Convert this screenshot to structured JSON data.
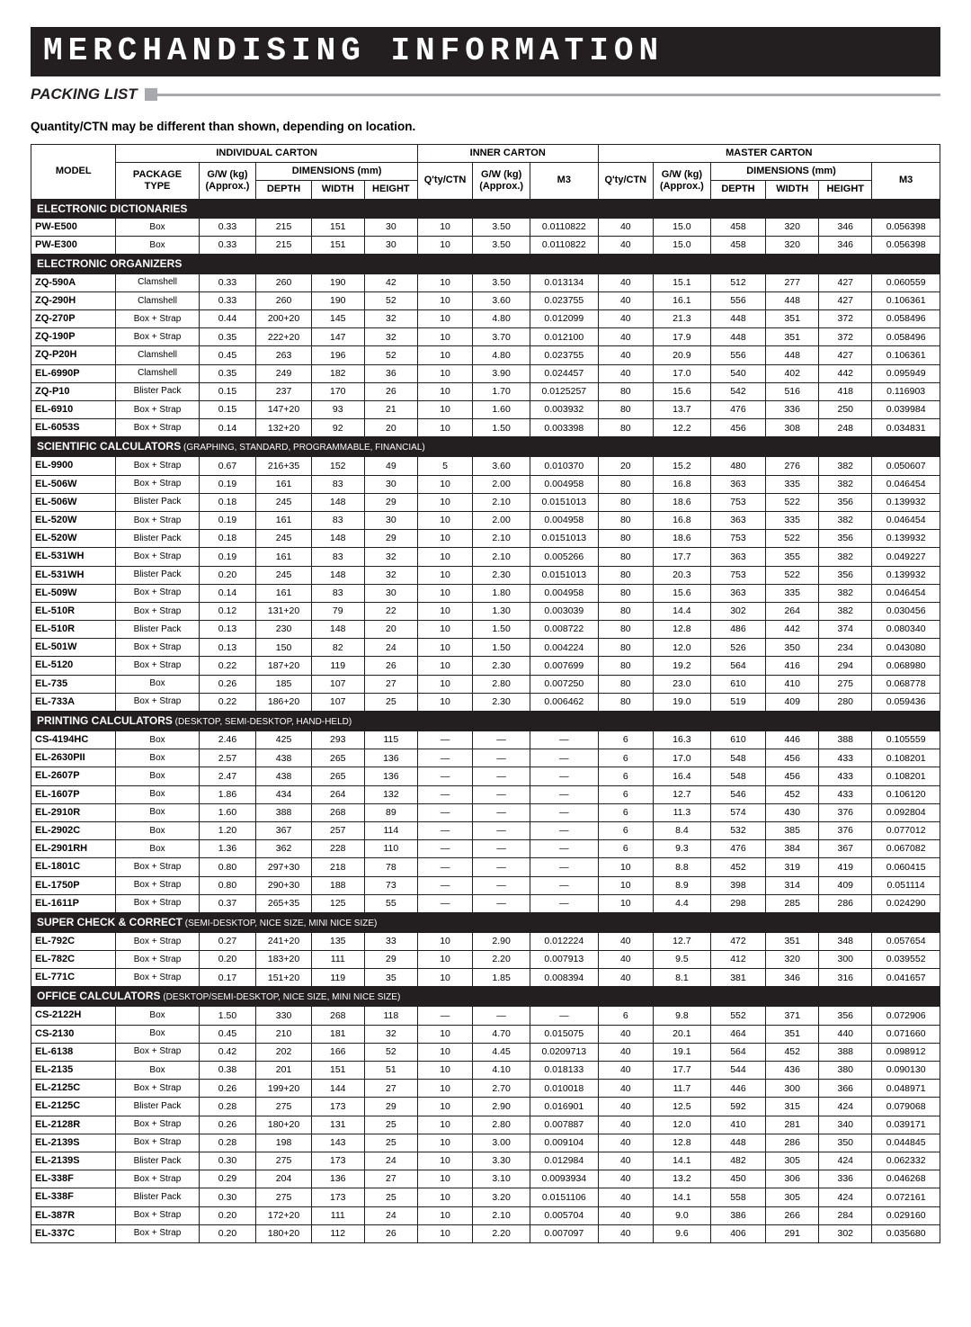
{
  "page": {
    "title": "MERCHANDISING INFORMATION",
    "subtitle": "PACKING LIST",
    "note": "Quantity/CTN may be different than shown, depending on location."
  },
  "headers": {
    "model": "MODEL",
    "individual": "INDIVIDUAL CARTON",
    "inner": "INNER CARTON",
    "master": "MASTER CARTON",
    "package_type_l1": "PACKAGE",
    "package_type_l2": "TYPE",
    "gw_l1": "G/W (kg)",
    "gw_l2": "(Approx.)",
    "dimensions": "DIMENSIONS (mm)",
    "depth": "DEPTH",
    "width": "WIDTH",
    "height": "HEIGHT",
    "qty": "Q'ty/CTN",
    "m3": "M3"
  },
  "sections": [
    {
      "title": "ELECTRONIC DICTIONARIES",
      "sub": "",
      "rows": [
        [
          "PW-E500",
          "Box",
          "0.33",
          "215",
          "151",
          "30",
          "10",
          "3.50",
          "0.0110822",
          "40",
          "15.0",
          "458",
          "320",
          "346",
          "0.056398"
        ],
        [
          "PW-E300",
          "Box",
          "0.33",
          "215",
          "151",
          "30",
          "10",
          "3.50",
          "0.0110822",
          "40",
          "15.0",
          "458",
          "320",
          "346",
          "0.056398"
        ]
      ]
    },
    {
      "title": "ELECTRONIC ORGANIZERS",
      "sub": "",
      "rows": [
        [
          "ZQ-590A",
          "Clamshell",
          "0.33",
          "260",
          "190",
          "42",
          "10",
          "3.50",
          "0.013134",
          "40",
          "15.1",
          "512",
          "277",
          "427",
          "0.060559"
        ],
        [
          "ZQ-290H",
          "Clamshell",
          "0.33",
          "260",
          "190",
          "52",
          "10",
          "3.60",
          "0.023755",
          "40",
          "16.1",
          "556",
          "448",
          "427",
          "0.106361"
        ],
        [
          "ZQ-270P",
          "Box + Strap",
          "0.44",
          "200+20",
          "145",
          "32",
          "10",
          "4.80",
          "0.012099",
          "40",
          "21.3",
          "448",
          "351",
          "372",
          "0.058496"
        ],
        [
          "ZQ-190P",
          "Box + Strap",
          "0.35",
          "222+20",
          "147",
          "32",
          "10",
          "3.70",
          "0.012100",
          "40",
          "17.9",
          "448",
          "351",
          "372",
          "0.058496"
        ],
        [
          "ZQ-P20H",
          "Clamshell",
          "0.45",
          "263",
          "196",
          "52",
          "10",
          "4.80",
          "0.023755",
          "40",
          "20.9",
          "556",
          "448",
          "427",
          "0.106361"
        ],
        [
          "EL-6990P",
          "Clamshell",
          "0.35",
          "249",
          "182",
          "36",
          "10",
          "3.90",
          "0.024457",
          "40",
          "17.0",
          "540",
          "402",
          "442",
          "0.095949"
        ],
        [
          "ZQ-P10",
          "Blister Pack",
          "0.15",
          "237",
          "170",
          "26",
          "10",
          "1.70",
          "0.0125257",
          "80",
          "15.6",
          "542",
          "516",
          "418",
          "0.116903"
        ],
        [
          "EL-6910",
          "Box + Strap",
          "0.15",
          "147+20",
          "93",
          "21",
          "10",
          "1.60",
          "0.003932",
          "80",
          "13.7",
          "476",
          "336",
          "250",
          "0.039984"
        ],
        [
          "EL-6053S",
          "Box + Strap",
          "0.14",
          "132+20",
          "92",
          "20",
          "10",
          "1.50",
          "0.003398",
          "80",
          "12.2",
          "456",
          "308",
          "248",
          "0.034831"
        ]
      ]
    },
    {
      "title": "SCIENTIFIC CALCULATORS",
      "sub": " (GRAPHING, STANDARD, PROGRAMMABLE, FINANCIAL)",
      "rows": [
        [
          "EL-9900",
          "Box + Strap",
          "0.67",
          "216+35",
          "152",
          "49",
          "5",
          "3.60",
          "0.010370",
          "20",
          "15.2",
          "480",
          "276",
          "382",
          "0.050607"
        ],
        [
          "EL-506W",
          "Box + Strap",
          "0.19",
          "161",
          "83",
          "30",
          "10",
          "2.00",
          "0.004958",
          "80",
          "16.8",
          "363",
          "335",
          "382",
          "0.046454"
        ],
        [
          "EL-506W",
          "Blister Pack",
          "0.18",
          "245",
          "148",
          "29",
          "10",
          "2.10",
          "0.0151013",
          "80",
          "18.6",
          "753",
          "522",
          "356",
          "0.139932"
        ],
        [
          "EL-520W",
          "Box + Strap",
          "0.19",
          "161",
          "83",
          "30",
          "10",
          "2.00",
          "0.004958",
          "80",
          "16.8",
          "363",
          "335",
          "382",
          "0.046454"
        ],
        [
          "EL-520W",
          "Blister Pack",
          "0.18",
          "245",
          "148",
          "29",
          "10",
          "2.10",
          "0.0151013",
          "80",
          "18.6",
          "753",
          "522",
          "356",
          "0.139932"
        ],
        [
          "EL-531WH",
          "Box + Strap",
          "0.19",
          "161",
          "83",
          "32",
          "10",
          "2.10",
          "0.005266",
          "80",
          "17.7",
          "363",
          "355",
          "382",
          "0.049227"
        ],
        [
          "EL-531WH",
          "Blister Pack",
          "0.20",
          "245",
          "148",
          "32",
          "10",
          "2.30",
          "0.0151013",
          "80",
          "20.3",
          "753",
          "522",
          "356",
          "0.139932"
        ],
        [
          "EL-509W",
          "Box + Strap",
          "0.14",
          "161",
          "83",
          "30",
          "10",
          "1.80",
          "0.004958",
          "80",
          "15.6",
          "363",
          "335",
          "382",
          "0.046454"
        ],
        [
          "EL-510R",
          "Box + Strap",
          "0.12",
          "131+20",
          "79",
          "22",
          "10",
          "1.30",
          "0.003039",
          "80",
          "14.4",
          "302",
          "264",
          "382",
          "0.030456"
        ],
        [
          "EL-510R",
          "Blister Pack",
          "0.13",
          "230",
          "148",
          "20",
          "10",
          "1.50",
          "0.008722",
          "80",
          "12.8",
          "486",
          "442",
          "374",
          "0.080340"
        ],
        [
          "EL-501W",
          "Box + Strap",
          "0.13",
          "150",
          "82",
          "24",
          "10",
          "1.50",
          "0.004224",
          "80",
          "12.0",
          "526",
          "350",
          "234",
          "0.043080"
        ],
        [
          "EL-5120",
          "Box + Strap",
          "0.22",
          "187+20",
          "119",
          "26",
          "10",
          "2.30",
          "0.007699",
          "80",
          "19.2",
          "564",
          "416",
          "294",
          "0.068980"
        ],
        [
          "EL-735",
          "Box",
          "0.26",
          "185",
          "107",
          "27",
          "10",
          "2.80",
          "0.007250",
          "80",
          "23.0",
          "610",
          "410",
          "275",
          "0.068778"
        ],
        [
          "EL-733A",
          "Box + Strap",
          "0.22",
          "186+20",
          "107",
          "25",
          "10",
          "2.30",
          "0.006462",
          "80",
          "19.0",
          "519",
          "409",
          "280",
          "0.059436"
        ]
      ]
    },
    {
      "title": "PRINTING CALCULATORS",
      "sub": " (DESKTOP, SEMI-DESKTOP, HAND-HELD)",
      "rows": [
        [
          "CS-4194HC",
          "Box",
          "2.46",
          "425",
          "293",
          "115",
          "—",
          "—",
          "—",
          "6",
          "16.3",
          "610",
          "446",
          "388",
          "0.105559"
        ],
        [
          "EL-2630PII",
          "Box",
          "2.57",
          "438",
          "265",
          "136",
          "—",
          "—",
          "—",
          "6",
          "17.0",
          "548",
          "456",
          "433",
          "0.108201"
        ],
        [
          "EL-2607P",
          "Box",
          "2.47",
          "438",
          "265",
          "136",
          "—",
          "—",
          "—",
          "6",
          "16.4",
          "548",
          "456",
          "433",
          "0.108201"
        ],
        [
          "EL-1607P",
          "Box",
          "1.86",
          "434",
          "264",
          "132",
          "—",
          "—",
          "—",
          "6",
          "12.7",
          "546",
          "452",
          "433",
          "0.106120"
        ],
        [
          "EL-2910R",
          "Box",
          "1.60",
          "388",
          "268",
          "89",
          "—",
          "—",
          "—",
          "6",
          "11.3",
          "574",
          "430",
          "376",
          "0.092804"
        ],
        [
          "EL-2902C",
          "Box",
          "1.20",
          "367",
          "257",
          "114",
          "—",
          "—",
          "—",
          "6",
          "8.4",
          "532",
          "385",
          "376",
          "0.077012"
        ],
        [
          "EL-2901RH",
          "Box",
          "1.36",
          "362",
          "228",
          "110",
          "—",
          "—",
          "—",
          "6",
          "9.3",
          "476",
          "384",
          "367",
          "0.067082"
        ],
        [
          "EL-1801C",
          "Box + Strap",
          "0.80",
          "297+30",
          "218",
          "78",
          "—",
          "—",
          "—",
          "10",
          "8.8",
          "452",
          "319",
          "419",
          "0.060415"
        ],
        [
          "EL-1750P",
          "Box + Strap",
          "0.80",
          "290+30",
          "188",
          "73",
          "—",
          "—",
          "—",
          "10",
          "8.9",
          "398",
          "314",
          "409",
          "0.051114"
        ],
        [
          "EL-1611P",
          "Box + Strap",
          "0.37",
          "265+35",
          "125",
          "55",
          "—",
          "—",
          "—",
          "10",
          "4.4",
          "298",
          "285",
          "286",
          "0.024290"
        ]
      ]
    },
    {
      "title": "SUPER CHECK & CORRECT",
      "sub": " (SEMI-DESKTOP, NICE SIZE, MINI NICE SIZE)",
      "rows": [
        [
          "EL-792C",
          "Box + Strap",
          "0.27",
          "241+20",
          "135",
          "33",
          "10",
          "2.90",
          "0.012224",
          "40",
          "12.7",
          "472",
          "351",
          "348",
          "0.057654"
        ],
        [
          "EL-782C",
          "Box + Strap",
          "0.20",
          "183+20",
          "111",
          "29",
          "10",
          "2.20",
          "0.007913",
          "40",
          "9.5",
          "412",
          "320",
          "300",
          "0.039552"
        ],
        [
          "EL-771C",
          "Box + Strap",
          "0.17",
          "151+20",
          "119",
          "35",
          "10",
          "1.85",
          "0.008394",
          "40",
          "8.1",
          "381",
          "346",
          "316",
          "0.041657"
        ]
      ]
    },
    {
      "title": "OFFICE CALCULATORS",
      "sub": " (DESKTOP/SEMI-DESKTOP, NICE SIZE, MINI NICE SIZE)",
      "rows": [
        [
          "CS-2122H",
          "Box",
          "1.50",
          "330",
          "268",
          "118",
          "—",
          "—",
          "—",
          "6",
          "9.8",
          "552",
          "371",
          "356",
          "0.072906"
        ],
        [
          "CS-2130",
          "Box",
          "0.45",
          "210",
          "181",
          "32",
          "10",
          "4.70",
          "0.015075",
          "40",
          "20.1",
          "464",
          "351",
          "440",
          "0.071660"
        ],
        [
          "EL-6138",
          "Box + Strap",
          "0.42",
          "202",
          "166",
          "52",
          "10",
          "4.45",
          "0.0209713",
          "40",
          "19.1",
          "564",
          "452",
          "388",
          "0.098912"
        ],
        [
          "EL-2135",
          "Box",
          "0.38",
          "201",
          "151",
          "51",
          "10",
          "4.10",
          "0.018133",
          "40",
          "17.7",
          "544",
          "436",
          "380",
          "0.090130"
        ],
        [
          "EL-2125C",
          "Box + Strap",
          "0.26",
          "199+20",
          "144",
          "27",
          "10",
          "2.70",
          "0.010018",
          "40",
          "11.7",
          "446",
          "300",
          "366",
          "0.048971"
        ],
        [
          "EL-2125C",
          "Blister Pack",
          "0.28",
          "275",
          "173",
          "29",
          "10",
          "2.90",
          "0.016901",
          "40",
          "12.5",
          "592",
          "315",
          "424",
          "0.079068"
        ],
        [
          "EL-2128R",
          "Box + Strap",
          "0.26",
          "180+20",
          "131",
          "25",
          "10",
          "2.80",
          "0.007887",
          "40",
          "12.0",
          "410",
          "281",
          "340",
          "0.039171"
        ],
        [
          "EL-2139S",
          "Box + Strap",
          "0.28",
          "198",
          "143",
          "25",
          "10",
          "3.00",
          "0.009104",
          "40",
          "12.8",
          "448",
          "286",
          "350",
          "0.044845"
        ],
        [
          "EL-2139S",
          "Blister Pack",
          "0.30",
          "275",
          "173",
          "24",
          "10",
          "3.30",
          "0.012984",
          "40",
          "14.1",
          "482",
          "305",
          "424",
          "0.062332"
        ],
        [
          "EL-338F",
          "Box + Strap",
          "0.29",
          "204",
          "136",
          "27",
          "10",
          "3.10",
          "0.0093934",
          "40",
          "13.2",
          "450",
          "306",
          "336",
          "0.046268"
        ],
        [
          "EL-338F",
          "Blister Pack",
          "0.30",
          "275",
          "173",
          "25",
          "10",
          "3.20",
          "0.0151106",
          "40",
          "14.1",
          "558",
          "305",
          "424",
          "0.072161"
        ],
        [
          "EL-387R",
          "Box + Strap",
          "0.20",
          "172+20",
          "111",
          "24",
          "10",
          "2.10",
          "0.005704",
          "40",
          "9.0",
          "386",
          "266",
          "284",
          "0.029160"
        ],
        [
          "EL-337C",
          "Box + Strap",
          "0.20",
          "180+20",
          "112",
          "26",
          "10",
          "2.20",
          "0.007097",
          "40",
          "9.6",
          "406",
          "291",
          "302",
          "0.035680"
        ]
      ]
    }
  ]
}
